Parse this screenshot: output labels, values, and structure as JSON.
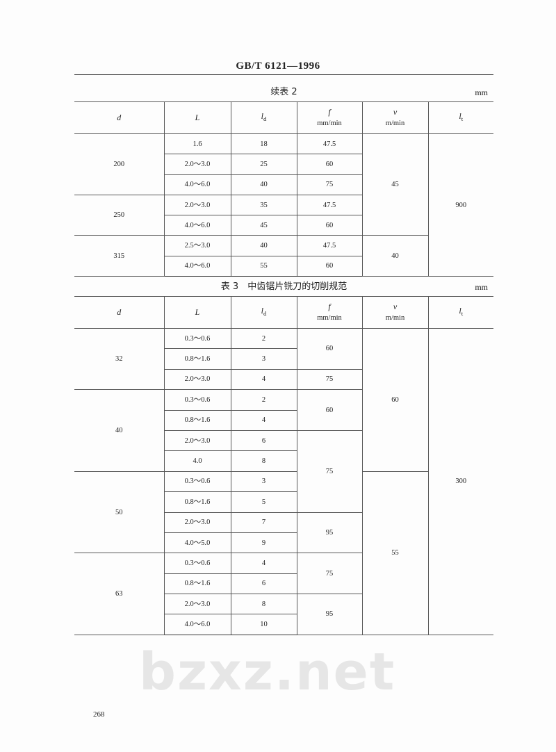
{
  "header": {
    "standard": "GB/T 6121—1996"
  },
  "watermark": "bzxz.net",
  "table2": {
    "caption": "续表 2",
    "unit": "mm",
    "headers": {
      "d": "d",
      "L": "L",
      "ld": "l",
      "ld_sub": "d",
      "f": "f",
      "f_unit": "mm/min",
      "v": "v",
      "v_unit": "m/min",
      "lt": "l",
      "lt_sub": "t"
    },
    "rows": [
      {
        "d": "200",
        "L": "1.6",
        "ld": "18",
        "f": "47.5",
        "v": "45",
        "lt": "900"
      },
      {
        "L": "2.0～3.0",
        "ld": "25",
        "f": "60"
      },
      {
        "L": "4.0～6.0",
        "ld": "40",
        "f": "75"
      },
      {
        "d": "250",
        "L": "2.0～3.0",
        "ld": "35",
        "f": "47.5"
      },
      {
        "L": "4.0～6.0",
        "ld": "45",
        "f": "60"
      },
      {
        "d": "315",
        "L": "2.5～3.0",
        "ld": "40",
        "f": "47.5",
        "v": "40"
      },
      {
        "L": "4.0～6.0",
        "ld": "55",
        "f": "60"
      }
    ]
  },
  "table3": {
    "caption": "表 3　中齿锯片铣刀的切削规范",
    "unit": "mm",
    "rows": [
      {
        "d": "32",
        "L": "0.3～0.6",
        "ld": "2",
        "f": "60",
        "v": "60",
        "lt": "300"
      },
      {
        "L": "0.8～1.6",
        "ld": "3"
      },
      {
        "L": "2.0～3.0",
        "ld": "4",
        "f": "75"
      },
      {
        "d": "40",
        "L": "0.3～0.6",
        "ld": "2",
        "f": "60"
      },
      {
        "L": "0.8～1.6",
        "ld": "4"
      },
      {
        "L": "2.0～3.0",
        "ld": "6",
        "f": "75"
      },
      {
        "L": "4.0",
        "ld": "8"
      },
      {
        "d": "50",
        "L": "0.3～0.6",
        "ld": "3",
        "v": "55"
      },
      {
        "L": "0.8～1.6",
        "ld": "5"
      },
      {
        "L": "2.0～3.0",
        "ld": "7",
        "f": "95"
      },
      {
        "L": "4.0～5.0",
        "ld": "9"
      },
      {
        "d": "63",
        "L": "0.3～0.6",
        "ld": "4",
        "f": "75"
      },
      {
        "L": "0.8～1.6",
        "ld": "6"
      },
      {
        "L": "2.0～3.0",
        "ld": "8",
        "f": "95"
      },
      {
        "L": "4.0～6.0",
        "ld": "10"
      }
    ]
  },
  "footer": {
    "page_number": "268"
  }
}
